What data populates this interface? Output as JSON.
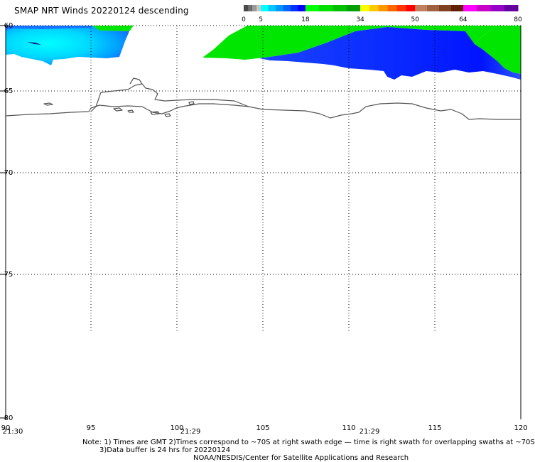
{
  "title": "SMAP NRT Winds  20220124 descending",
  "colorbar": {
    "tick_labels": [
      "0",
      "5",
      "18",
      "34",
      "50",
      "64",
      "80"
    ],
    "tick_values": [
      0,
      5,
      18,
      34,
      50,
      64,
      80
    ],
    "segments": [
      {
        "from": 0,
        "to": 5,
        "colors": [
          "#4a4a4a",
          "#6e6e6e",
          "#9a9a9a",
          "#c8c8c8"
        ]
      },
      {
        "from": 5,
        "to": 18,
        "colors": [
          "#00ffff",
          "#00c8ff",
          "#0096ff",
          "#0064ff",
          "#0032ff",
          "#0000ff"
        ]
      },
      {
        "from": 18,
        "to": 34,
        "colors": [
          "#00ff00",
          "#00e000",
          "#00c000",
          "#00a000"
        ]
      },
      {
        "from": 34,
        "to": 50,
        "colors": [
          "#ffff00",
          "#ffc800",
          "#ff9600",
          "#ff6400",
          "#ff3200",
          "#ff0000"
        ]
      },
      {
        "from": 50,
        "to": 64,
        "colors": [
          "#c08060",
          "#a06040",
          "#804020",
          "#602000"
        ]
      },
      {
        "from": 64,
        "to": 80,
        "colors": [
          "#ff00ff",
          "#c800c8",
          "#9600c8",
          "#6400a0"
        ]
      }
    ]
  },
  "map": {
    "lon_ticks": [
      "90",
      "95",
      "100",
      "105",
      "110",
      "115",
      "120"
    ],
    "lat_ticks": [
      "-60",
      "-65",
      "-70",
      "-75",
      "-80"
    ],
    "time_labels": [
      "21:30",
      "21:29",
      "21:29"
    ]
  },
  "notes": {
    "line1": "Note: 1) Times are GMT  2)Times correspond to ~70S at right swath edge — time is right swath for overlapping swaths at ~70S",
    "line2": "3)Data buffer is 24 hrs for 20220124",
    "line3": "NOAA/NESDIS/Center for Satellite Applications and Research"
  },
  "colors": {
    "low_wind": "#00e5ff",
    "moderate_wind": "#0a1eff",
    "strong_wind": "#00e600",
    "coastline": "#555555",
    "grid": "#000000"
  }
}
